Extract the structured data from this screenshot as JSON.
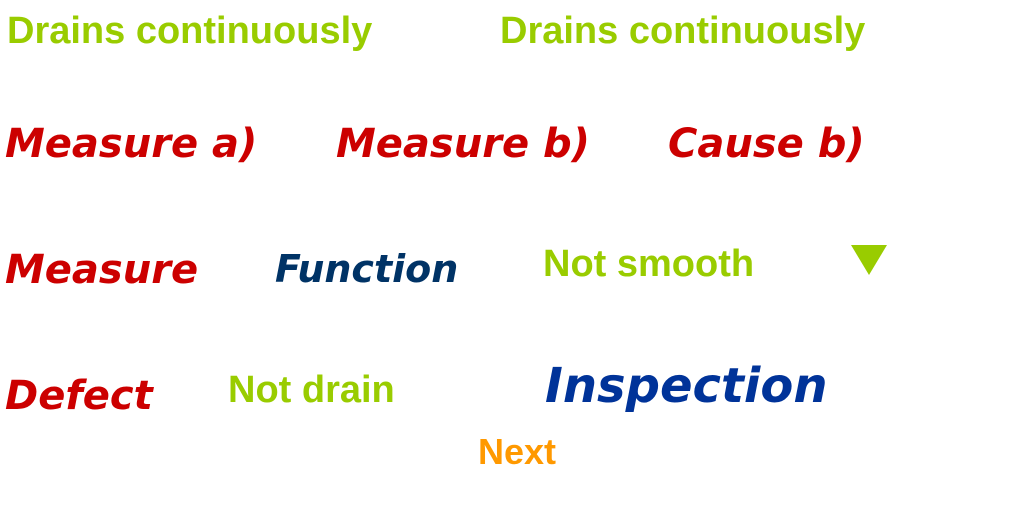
{
  "labels": {
    "drains_1": "Drains continuously",
    "drains_2": "Drains continuously",
    "measure_a": "Measure a)",
    "measure_b": "Measure b)",
    "cause_b": "Cause b)",
    "measure": "Measure",
    "function": "Function",
    "not_smooth": "Not smooth",
    "defect": "Defect",
    "not_drain": "Not drain",
    "inspection": "Inspection",
    "next": "Next"
  },
  "icons": {
    "dropdown": "triangle-down-icon"
  },
  "colors": {
    "green": "#99cc00",
    "red": "#cc0000",
    "navy": "#003366",
    "blue": "#003399",
    "orange": "#ff9900"
  }
}
